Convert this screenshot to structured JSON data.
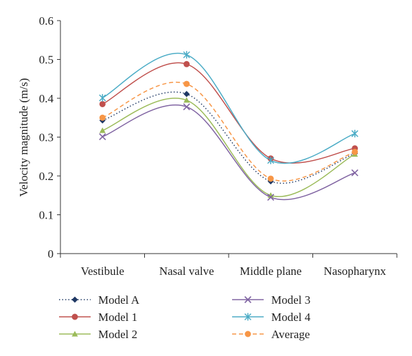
{
  "chart_data": {
    "type": "line",
    "title": "",
    "xlabel": "",
    "ylabel": "Velocity magnitude (m/s)",
    "categories": [
      "Vestibule",
      "Nasal valve",
      "Middle plane",
      "Nasopharynx"
    ],
    "ylim": [
      0,
      0.6
    ],
    "yticks": [
      "0",
      "0.1",
      "0.2",
      "0.3",
      "0.4",
      "0.5",
      "0.6"
    ],
    "smooth": true,
    "grid": false,
    "legend_position": "bottom",
    "series": [
      {
        "name": "Model A",
        "values": [
          0.343,
          0.411,
          0.186,
          0.258
        ],
        "color": "#1f3864",
        "dash": "dotted",
        "marker": "diamond"
      },
      {
        "name": "Model 1",
        "values": [
          0.385,
          0.488,
          0.245,
          0.271
        ],
        "color": "#c0504d",
        "dash": "solid",
        "marker": "circle"
      },
      {
        "name": "Model 2",
        "values": [
          0.317,
          0.395,
          0.15,
          0.256
        ],
        "color": "#9bbb59",
        "dash": "solid",
        "marker": "triangle"
      },
      {
        "name": "Model 3",
        "values": [
          0.301,
          0.378,
          0.145,
          0.208
        ],
        "color": "#8064a2",
        "dash": "solid",
        "marker": "x"
      },
      {
        "name": "Model 4",
        "values": [
          0.401,
          0.512,
          0.24,
          0.309
        ],
        "color": "#4bacc6",
        "dash": "solid",
        "marker": "star"
      },
      {
        "name": "Average",
        "values": [
          0.35,
          0.437,
          0.193,
          0.262
        ],
        "color": "#f79646",
        "dash": "dashed",
        "marker": "circle"
      }
    ]
  }
}
